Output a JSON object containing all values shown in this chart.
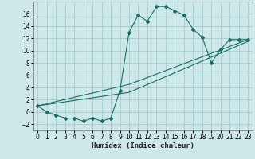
{
  "title": "",
  "xlabel": "Humidex (Indice chaleur)",
  "bg_color": "#cce8e8",
  "grid_color": "#aacccc",
  "line_color": "#1a7060",
  "xlim": [
    -0.5,
    23.5
  ],
  "ylim": [
    -3,
    18
  ],
  "xticks": [
    0,
    1,
    2,
    3,
    4,
    5,
    6,
    7,
    8,
    9,
    10,
    11,
    12,
    13,
    14,
    15,
    16,
    17,
    18,
    19,
    20,
    21,
    22,
    23
  ],
  "yticks": [
    -2,
    0,
    2,
    4,
    6,
    8,
    10,
    12,
    14,
    16
  ],
  "series1_x": [
    0,
    1,
    2,
    3,
    4,
    5,
    6,
    7,
    8,
    9,
    10,
    11,
    12,
    13,
    14,
    15,
    16,
    17,
    18,
    19,
    20,
    21,
    22,
    23
  ],
  "series1_y": [
    1,
    0,
    -0.5,
    -1,
    -1,
    -1.5,
    -1,
    -1.5,
    -1,
    3.5,
    13,
    15.8,
    14.8,
    17.2,
    17.2,
    16.5,
    15.8,
    13.5,
    12.2,
    8.0,
    10.2,
    11.8,
    11.8,
    11.8
  ],
  "series2_x": [
    0,
    10,
    23
  ],
  "series2_y": [
    1,
    4.5,
    11.8
  ],
  "series3_x": [
    0,
    10,
    23
  ],
  "series3_y": [
    1,
    3.2,
    11.5
  ],
  "tick_fontsize": 5.5,
  "xlabel_fontsize": 6.5
}
